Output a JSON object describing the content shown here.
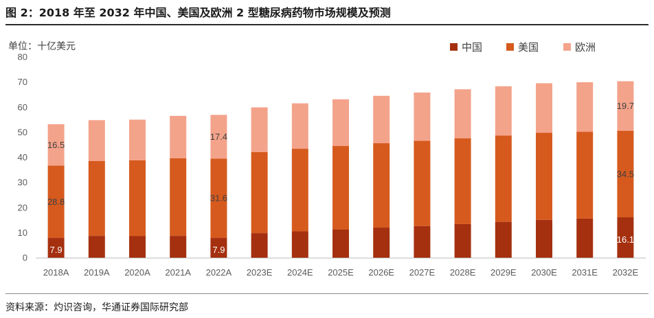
{
  "figure": {
    "title": "图 2：2018 年至 2032 年中国、美国及欧洲 2 型糖尿病药物市场规模及预测",
    "unit_label": "单位：十亿美元",
    "source": "资料来源：灼识咨询，华通证券国际研究部"
  },
  "chart_data": {
    "type": "bar",
    "stacked": true,
    "title": "",
    "xlabel": "",
    "ylabel": "单位：十亿美元",
    "ylim": [
      0,
      80
    ],
    "yticks": [
      0,
      10,
      20,
      30,
      40,
      50,
      60,
      70,
      80
    ],
    "grid": false,
    "legend_position": "top-right",
    "categories": [
      "2018A",
      "2019A",
      "2020A",
      "2021A",
      "2022A",
      "2023E",
      "2024E",
      "2025E",
      "2026E",
      "2027E",
      "2028E",
      "2029E",
      "2030E",
      "2031E",
      "2032E"
    ],
    "series": [
      {
        "name": "中国",
        "color": "#a5300f",
        "values": [
          7.9,
          8.7,
          8.6,
          8.7,
          7.9,
          9.8,
          10.5,
          11.2,
          12.0,
          12.6,
          13.4,
          14.3,
          15.1,
          15.6,
          16.1
        ]
      },
      {
        "name": "美国",
        "color": "#d65a1e",
        "values": [
          28.8,
          29.8,
          30.2,
          30.9,
          31.6,
          32.3,
          32.9,
          33.3,
          33.6,
          34.0,
          34.2,
          34.4,
          34.7,
          34.6,
          34.5
        ]
      },
      {
        "name": "欧洲",
        "color": "#f4a38b",
        "values": [
          16.5,
          16.3,
          16.2,
          16.9,
          17.4,
          17.8,
          18.1,
          18.6,
          18.9,
          19.2,
          19.5,
          19.6,
          19.7,
          19.7,
          19.7
        ]
      }
    ],
    "data_labels": [
      {
        "category": "2018A",
        "series": "中国",
        "text": "7.9"
      },
      {
        "category": "2018A",
        "series": "美国",
        "text": "28.8"
      },
      {
        "category": "2018A",
        "series": "欧洲",
        "text": "16.5"
      },
      {
        "category": "2022A",
        "series": "中国",
        "text": "7.9"
      },
      {
        "category": "2022A",
        "series": "美国",
        "text": "31.6"
      },
      {
        "category": "2022A",
        "series": "欧洲",
        "text": "17.4"
      },
      {
        "category": "2032E",
        "series": "中国",
        "text": "16.1"
      },
      {
        "category": "2032E",
        "series": "美国",
        "text": "34.5"
      },
      {
        "category": "2032E",
        "series": "欧洲",
        "text": "19.7"
      }
    ]
  }
}
